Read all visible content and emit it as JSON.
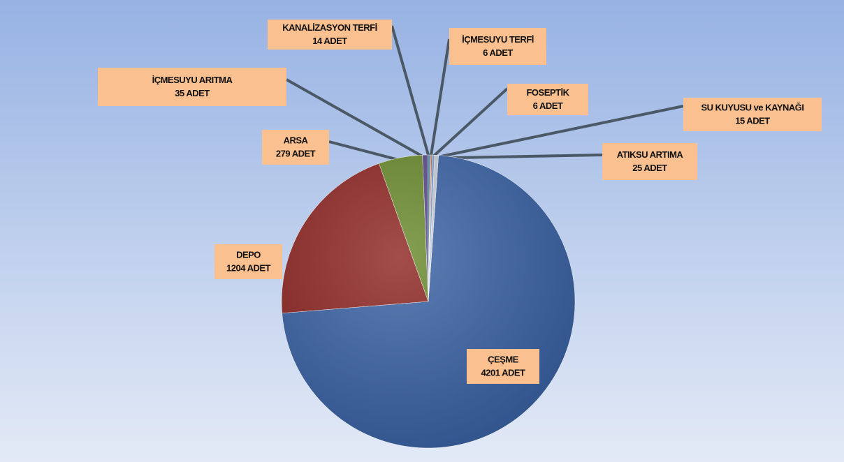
{
  "chart_data": {
    "type": "pie",
    "categories": [
      "ÇEŞME",
      "DEPO",
      "ARSA",
      "İÇMESUYU ARITMA",
      "KANALİZASYON TERFİ",
      "İÇMESUYU TERFİ",
      "FOSEPTİK",
      "SU KUYUSU ve KAYNAĞI",
      "ATIKSU ARTIMA"
    ],
    "values": [
      4201,
      1204,
      279,
      35,
      14,
      6,
      6,
      15,
      25
    ],
    "value_labels": [
      "4201 ADET",
      "1204 ADET",
      "279 ADET",
      "35 ADET",
      "14 ADET",
      "6 ADET",
      "6 ADET",
      "15 ADET",
      "25 ADET"
    ],
    "colors": [
      "#3b63a6",
      "#8f2724",
      "#6b8b2d",
      "#5a4a8a",
      "#3f8fb0",
      "#d0702a",
      "#b03a36",
      "#7fa0d0",
      "#c8cfd8"
    ]
  }
}
